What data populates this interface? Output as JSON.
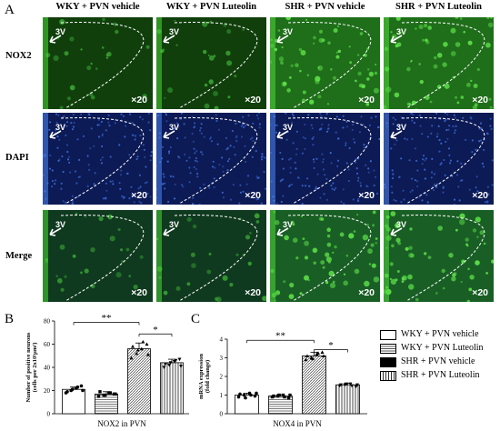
{
  "panel_labels": {
    "a": "A",
    "b": "B",
    "c": "C"
  },
  "columns": [
    "WKY + PVN vehicle",
    "WKY + PVN Luteolin",
    "SHR + PVN vehicle",
    "SHR + PVN Luteolin"
  ],
  "rows": [
    "NOX2",
    "DAPI",
    "Merge"
  ],
  "magnification": "×20",
  "ventricle_label": "3V",
  "colors": {
    "nox2": "#2fa52a",
    "dapi": "#1b3f9e",
    "merge": "#23772e"
  },
  "legend": [
    {
      "label": "WKY + PVN vehicle",
      "pattern": "white"
    },
    {
      "label": "WKY + PVN Luteolin",
      "pattern": "horizontal-lines"
    },
    {
      "label": "SHR + PVN vehicle",
      "pattern": "black"
    },
    {
      "label": "SHR + PVN Luteolin",
      "pattern": "vertical-lines"
    }
  ],
  "chart_data": [
    {
      "type": "bar",
      "panel": "B",
      "xlabel": "NOX2 in PVN",
      "ylabel": "Number of positive neurons (cells per 2x10⁵μm²)",
      "ylim": [
        0,
        80
      ],
      "yticks": [
        "0",
        "20",
        "40",
        "60",
        "80"
      ],
      "categories": [
        "WKY + PVN vehicle",
        "WKY + PVN Luteolin",
        "SHR + PVN vehicle",
        "SHR + PVN Luteolin"
      ],
      "values": [
        21,
        17,
        56,
        44
      ],
      "errors": [
        2,
        2,
        5,
        3
      ],
      "points": [
        [
          18,
          20,
          22,
          24,
          19,
          21,
          23,
          20
        ],
        [
          15,
          16,
          18,
          17,
          19,
          16,
          18,
          17
        ],
        [
          48,
          52,
          56,
          60,
          58,
          55,
          62,
          51
        ],
        [
          40,
          42,
          45,
          47,
          43,
          44,
          46,
          41
        ]
      ],
      "significance": [
        {
          "from": 0,
          "to": 2,
          "label": "**"
        },
        {
          "from": 2,
          "to": 3,
          "label": "*"
        }
      ]
    },
    {
      "type": "bar",
      "panel": "C",
      "xlabel": "NOX4 in PVN",
      "ylabel": "mRNA expression (fold change)",
      "ylim": [
        0,
        4
      ],
      "yticks": [
        "0",
        "1",
        "2",
        "3",
        "4"
      ],
      "categories": [
        "WKY + PVN vehicle",
        "WKY + PVN Luteolin",
        "SHR + PVN vehicle",
        "SHR + PVN Luteolin"
      ],
      "values": [
        1.0,
        0.95,
        3.1,
        1.55
      ],
      "errors": [
        0.1,
        0.08,
        0.2,
        0.08
      ],
      "points": [
        [
          0.9,
          1.0,
          1.1,
          0.95,
          1.05,
          0.85,
          1.0,
          1.1
        ],
        [
          0.9,
          0.95,
          1.0,
          0.85,
          0.95,
          1.0,
          0.9,
          1.0
        ],
        [
          2.9,
          3.0,
          3.2,
          3.3,
          3.1,
          2.95,
          3.25,
          3.1
        ],
        [
          1.5,
          1.55,
          1.6,
          1.45,
          1.55,
          1.6,
          1.5,
          1.55
        ]
      ],
      "significance": [
        {
          "from": 0,
          "to": 2,
          "label": "**"
        },
        {
          "from": 2,
          "to": 3,
          "label": "*"
        }
      ]
    }
  ]
}
